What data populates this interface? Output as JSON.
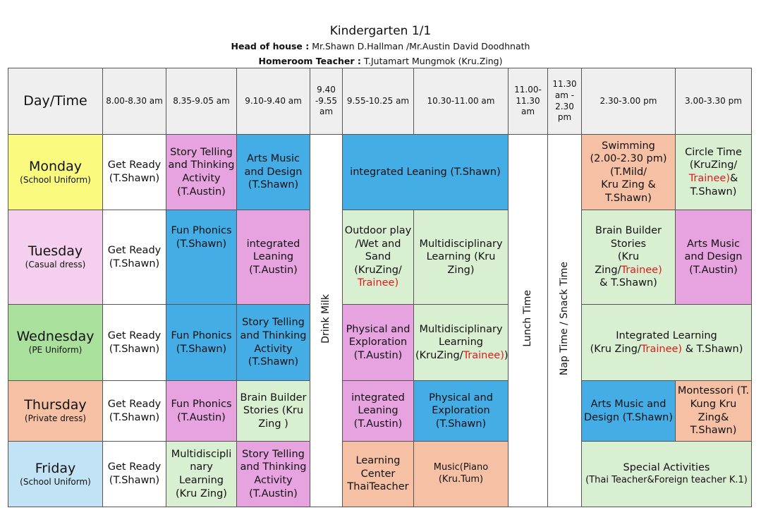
{
  "header": {
    "title": "Kindergarten 1/1",
    "head_label": "Head of house :",
    "head_value": "Mr.Shawn D.Hallman /Mr.Austin David Doodhnath",
    "homeroom_label": "Homeroom Teacher :",
    "homeroom_value": "T.Jutamart Mungmok (Kru.Zing)"
  },
  "time_header": {
    "day_time": "Day/Time",
    "t1": "8.00-8.30 am",
    "t2": "8.35-9.05 am",
    "t3": "9.10-9.40 am",
    "t4": "9.40 -9.55 am",
    "t5": "9.55-10.25 am",
    "t6": "10.30-11.00 am",
    "t7": "11.00-11.30 am",
    "t8": "11.30 am - 2.30 pm",
    "t9": "2.30-3.00 pm",
    "t10": "3.00-3.30 pm"
  },
  "vertical": {
    "drink_milk": "Drink Milk",
    "lunch": "Lunch Time",
    "nap": "Nap Time / Snack Time"
  },
  "days": {
    "monday": {
      "name": "Monday",
      "dress": "(School Uniform)",
      "c1": "Get Ready (T.Shawn)",
      "c2": "Story Telling and Thinking Activity (T.Austin)",
      "c3": "Arts Music and Design (T.Shawn)",
      "c5": "integrated Leaning (T.Shawn)",
      "c9_l1": "Swimming",
      "c9_l2": "(2.00-2.30 pm)",
      "c9_l3": "(T.Mild/",
      "c9_l4": "Kru Zing &",
      "c9_l5": "T.Shawn)",
      "c10_l1": "Circle Time",
      "c10_l2": "(KruZing/",
      "c10_red": "Trainee)",
      "c10_l3": "&",
      "c10_l4": "T.Shawn)"
    },
    "tuesday": {
      "name": "Tuesday",
      "dress": "(Casual dress)",
      "c1": "Get Ready (T.Shawn)",
      "c2_l1": "Fun Phonics",
      "c2_l2": "(T.Shawn)",
      "c3": "integrated Leaning (T.Austin)",
      "c5_l1": "Outdoor play /Wet and Sand (KruZing/",
      "c5_red": "Trainee)",
      "c6": "Multidisciplinary Learning (Kru Zing)",
      "c9_l1": "Brain Builder Stories",
      "c9_l2": "(Kru Zing/",
      "c9_red": "Trainee)",
      "c9_l3": "& T.Shawn)",
      "c10": "Arts Music and Design (T.Austin)"
    },
    "wednesday": {
      "name": "Wednesday",
      "dress": "(PE Uniform)",
      "c1": "Get Ready (T.Shawn)",
      "c2": "Fun Phonics (T.Shawn)",
      "c3": "Story Telling and Thinking Activity (T.Shawn)",
      "c5": "Physical and Exploration (T.Austin)",
      "c6_l1": "Multidisciplinary Learning",
      "c6_l2": "(KruZing/",
      "c6_red": "Trainee)",
      "c6_l3": ")",
      "c9_l1": "Integrated Learning",
      "c9_l2": "(Kru Zing/",
      "c9_red": "Trainee)",
      "c9_l3": " & T.Shawn)"
    },
    "thursday": {
      "name": "Thursday",
      "dress": "(Private dress)",
      "c1": "Get Ready (T.Shawn)",
      "c2": "Fun Phonics (T.Austin)",
      "c3": "Brain Builder Stories (Kru Zing )",
      "c5": "integrated Leaning (T.Austin)",
      "c6": "Physical and Exploration (T.Shawn)",
      "c9": "Arts Music and Design (T.Shawn)",
      "c10": "Montessori (T. Kung Kru Zing& T.Shawn)"
    },
    "friday": {
      "name": "Friday",
      "dress": "(School Uniform)",
      "c1": "Get Ready (T.Shawn)",
      "c2": "Multidiscipli nary Learning (Kru Zing)",
      "c3": "Story Telling and Thinking Activity (T.Austin)",
      "c5": "Learning Center ThaiTeacher",
      "c6": "Music(Piano (Kru.Tum)",
      "c9_l1": "Special Activities",
      "c9_l2": "(Thai Teacher&Foreign teacher K.1)"
    }
  },
  "colors": {
    "pink": "#e6a3df",
    "blue": "#44ade6",
    "green": "#d9efd2",
    "peach": "#f5c0a3",
    "monday": "#fafa7e",
    "tuesday": "#f4cfee",
    "wednesday": "#a8e09c",
    "thursday": "#f5c0a3",
    "friday": "#c2e3f6",
    "trainee_red": "#e11b1b"
  }
}
